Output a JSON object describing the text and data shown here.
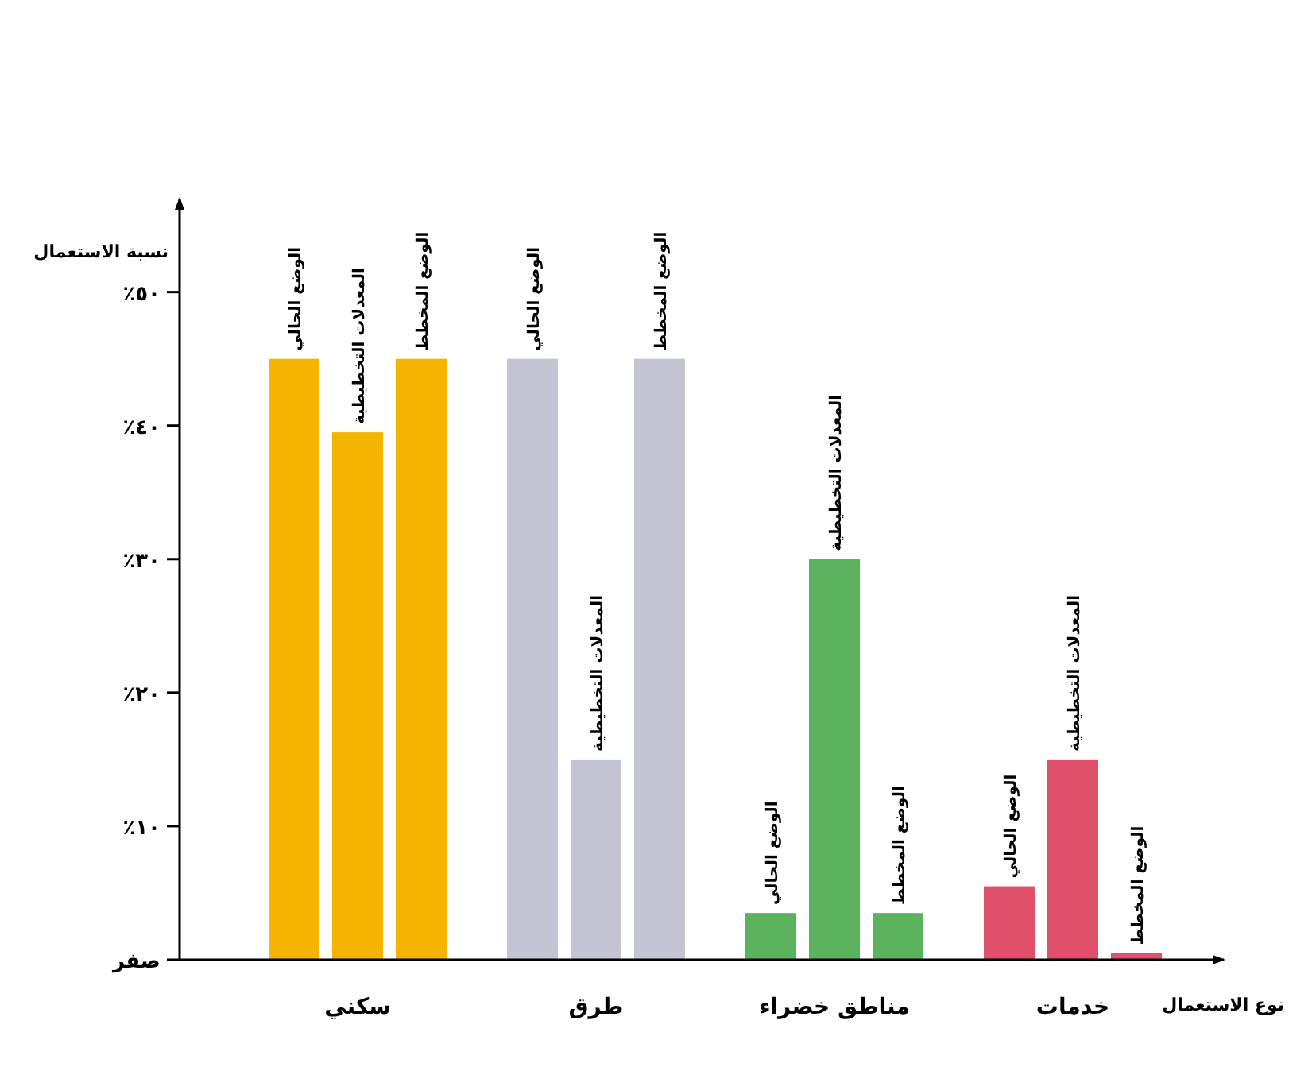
{
  "chart_data": {
    "type": "bar",
    "categories": [
      "سكني",
      "طرق",
      "مناطق خضراء",
      "خدمات"
    ],
    "series": [
      {
        "name": "الوضع الحالي",
        "colors": [
          "#f5b400",
          "#c3c5d4",
          "#5cb35e",
          "#e0506a"
        ],
        "values": [
          45,
          45,
          3.5,
          5.5
        ]
      },
      {
        "name": "المعدلات التخطيطية",
        "colors": [
          "#f5b400",
          "#c3c5d4",
          "#5cb35e",
          "#e0506a"
        ],
        "values": [
          39.5,
          15,
          30,
          15
        ]
      },
      {
        "name": "الوضع المخطط",
        "colors": [
          "#f5b400",
          "#c3c5d4",
          "#5cb35e",
          "#e0506a"
        ],
        "values": [
          45,
          45,
          3.5,
          0.5
        ]
      }
    ],
    "xlabel": "نوع الاستعمال",
    "ylabel": "نسبة الاستعمال",
    "ylim": [
      0,
      57
    ],
    "yticks": [
      {
        "value": 0,
        "label": "صفر"
      },
      {
        "value": 10,
        "label": "١٠٪"
      },
      {
        "value": 20,
        "label": "٢٠٪"
      },
      {
        "value": 30,
        "label": "٣٠٪"
      },
      {
        "value": 40,
        "label": "٤٠٪"
      },
      {
        "value": 50,
        "label": "٥٠٪"
      }
    ]
  }
}
